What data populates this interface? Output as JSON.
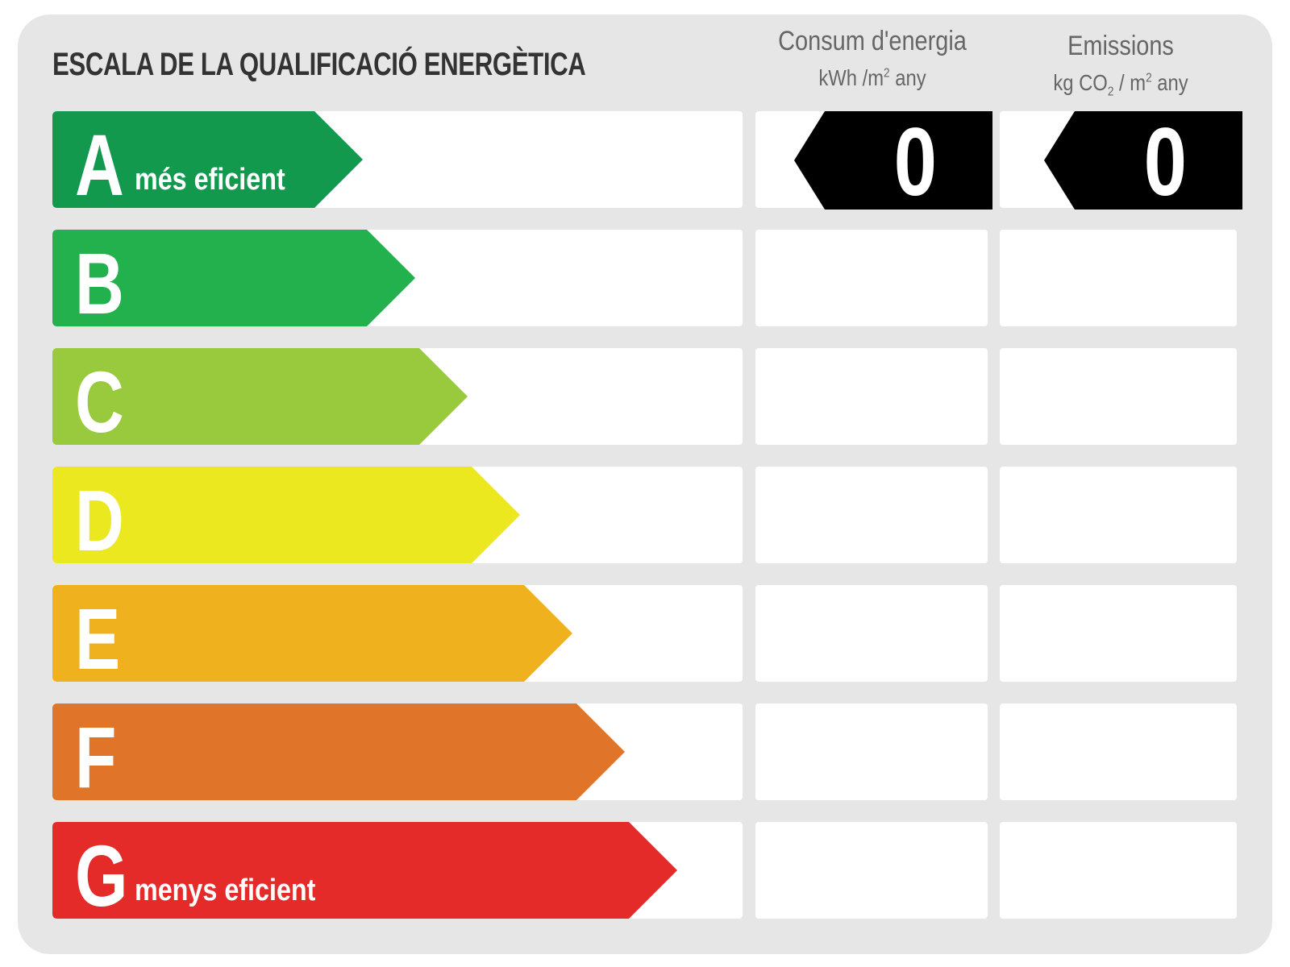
{
  "title": "ESCALA DE LA QUALIFICACIÓ ENERGÈTICA",
  "columns": {
    "energy": {
      "label": "Consum d'energia",
      "unit_prefix": "kWh /m",
      "unit_sup": "2",
      "unit_suffix": " any"
    },
    "emissions": {
      "label": "Emissions",
      "unit_prefix": "kg CO",
      "unit_sub": "2",
      "unit_mid": " / m",
      "unit_sup": "2",
      "unit_suffix": " any"
    }
  },
  "ratings": [
    {
      "letter": "A",
      "caption": "més eficient",
      "color": "#12994d"
    },
    {
      "letter": "B",
      "caption": "",
      "color": "#22b14c"
    },
    {
      "letter": "C",
      "caption": "",
      "color": "#99c93c"
    },
    {
      "letter": "D",
      "caption": "",
      "color": "#ebe81f"
    },
    {
      "letter": "E",
      "caption": "",
      "color": "#efb21e"
    },
    {
      "letter": "F",
      "caption": "",
      "color": "#e07428"
    },
    {
      "letter": "G",
      "caption": "menys eficient",
      "color": "#e42b2a"
    }
  ],
  "result": {
    "rating_row": "A",
    "energy_value": "0",
    "emissions_value": "0"
  }
}
